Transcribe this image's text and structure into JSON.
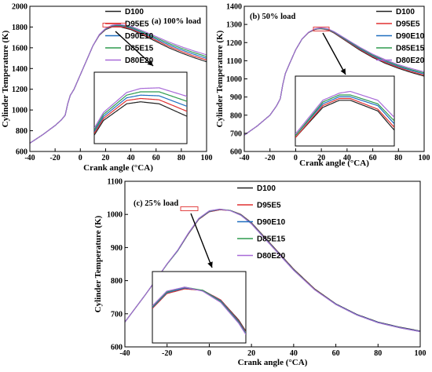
{
  "colors": {
    "D100": "#222222",
    "D95E5": "#e03030",
    "D90E10": "#1f6fc0",
    "D85E15": "#2e9b4e",
    "D80E20": "#a86ad8"
  },
  "chart_data": [
    {
      "type": "line",
      "title": "(a) 100% load",
      "xlabel": "Crank angle (°CA)",
      "ylabel": "Cylinder Temperature (K)",
      "xlim": [
        -40,
        100
      ],
      "ylim": [
        600,
        2000
      ],
      "xticks": [
        -40,
        -20,
        0,
        20,
        40,
        60,
        80,
        100
      ],
      "yticks": [
        600,
        800,
        1000,
        1200,
        1400,
        1600,
        1800,
        2000
      ],
      "x": [
        -40,
        -30,
        -20,
        -15,
        -12,
        -10,
        -8,
        -5,
        0,
        5,
        10,
        15,
        20,
        25,
        28,
        32,
        40,
        50,
        60,
        70,
        80,
        90,
        100
      ],
      "series": [
        {
          "name": "D100",
          "values": [
            680,
            760,
            850,
            905,
            950,
            1060,
            1140,
            1200,
            1340,
            1480,
            1620,
            1720,
            1775,
            1800,
            1803,
            1800,
            1775,
            1720,
            1660,
            1600,
            1550,
            1505,
            1465
          ]
        },
        {
          "name": "D95E5",
          "values": [
            680,
            760,
            850,
            905,
            950,
            1060,
            1140,
            1200,
            1340,
            1480,
            1620,
            1722,
            1778,
            1805,
            1808,
            1806,
            1783,
            1730,
            1672,
            1614,
            1565,
            1520,
            1482
          ]
        },
        {
          "name": "D90E10",
          "values": [
            680,
            760,
            850,
            905,
            950,
            1060,
            1140,
            1200,
            1340,
            1480,
            1620,
            1724,
            1781,
            1809,
            1813,
            1812,
            1791,
            1740,
            1684,
            1628,
            1580,
            1537,
            1498
          ]
        },
        {
          "name": "D85E15",
          "values": [
            680,
            760,
            850,
            905,
            950,
            1060,
            1140,
            1200,
            1340,
            1480,
            1620,
            1726,
            1784,
            1813,
            1818,
            1818,
            1799,
            1750,
            1696,
            1642,
            1595,
            1553,
            1515
          ]
        },
        {
          "name": "D80E20",
          "values": [
            680,
            760,
            850,
            905,
            950,
            1060,
            1140,
            1200,
            1340,
            1480,
            1620,
            1728,
            1787,
            1817,
            1823,
            1824,
            1807,
            1760,
            1708,
            1656,
            1610,
            1569,
            1532
          ]
        }
      ],
      "legend": "top-right"
    },
    {
      "type": "line",
      "title": "(b) 50% load",
      "xlabel": "Crank angle (°CA)",
      "ylabel": "Cylinder Temperature (K)",
      "xlim": [
        -40,
        100
      ],
      "ylim": [
        600,
        1400
      ],
      "xticks": [
        -40,
        -20,
        0,
        20,
        40,
        60,
        80,
        100
      ],
      "yticks": [
        600,
        700,
        800,
        900,
        1000,
        1100,
        1200,
        1300,
        1400
      ],
      "x": [
        -40,
        -30,
        -20,
        -15,
        -12,
        -10,
        -8,
        -5,
        0,
        5,
        10,
        15,
        18,
        20,
        25,
        30,
        40,
        50,
        60,
        70,
        80,
        90,
        100
      ],
      "series": [
        {
          "name": "D100",
          "values": [
            690,
            740,
            800,
            850,
            890,
            970,
            1030,
            1080,
            1160,
            1220,
            1255,
            1272,
            1276,
            1276,
            1270,
            1252,
            1205,
            1158,
            1118,
            1085,
            1058,
            1035,
            1015
          ]
        },
        {
          "name": "D95E5",
          "values": [
            690,
            740,
            800,
            850,
            890,
            970,
            1030,
            1080,
            1160,
            1220,
            1255,
            1273,
            1277,
            1277,
            1271,
            1254,
            1208,
            1162,
            1122,
            1090,
            1063,
            1040,
            1021
          ]
        },
        {
          "name": "D90E10",
          "values": [
            690,
            740,
            800,
            850,
            890,
            970,
            1030,
            1080,
            1160,
            1220,
            1256,
            1274,
            1278,
            1278,
            1273,
            1256,
            1211,
            1166,
            1127,
            1095,
            1068,
            1046,
            1027
          ]
        },
        {
          "name": "D85E15",
          "values": [
            690,
            740,
            800,
            850,
            890,
            970,
            1030,
            1080,
            1160,
            1220,
            1256,
            1275,
            1279,
            1279,
            1274,
            1258,
            1214,
            1170,
            1131,
            1100,
            1073,
            1051,
            1033
          ]
        },
        {
          "name": "D80E20",
          "values": [
            690,
            740,
            800,
            850,
            890,
            970,
            1030,
            1080,
            1160,
            1221,
            1257,
            1276,
            1280,
            1281,
            1276,
            1260,
            1217,
            1174,
            1136,
            1105,
            1078,
            1057,
            1039
          ]
        }
      ],
      "legend": "top-right"
    },
    {
      "type": "line",
      "title": "(c) 25% load",
      "xlabel": "Crank angle (°CA)",
      "ylabel": "Cylinder Temperature (K)",
      "xlim": [
        -40,
        100
      ],
      "ylim": [
        600,
        1100
      ],
      "xticks": [
        -40,
        -20,
        0,
        20,
        40,
        60,
        80,
        100
      ],
      "yticks": [
        600,
        700,
        800,
        900,
        1000,
        1100
      ],
      "x": [
        -40,
        -30,
        -20,
        -15,
        -10,
        -5,
        0,
        5,
        10,
        15,
        20,
        30,
        40,
        50,
        60,
        70,
        80,
        90,
        100
      ],
      "series": [
        {
          "name": "D100",
          "values": [
            675,
            760,
            850,
            890,
            940,
            985,
            1008,
            1014,
            1012,
            1000,
            975,
            905,
            835,
            775,
            730,
            698,
            675,
            660,
            648
          ]
        },
        {
          "name": "D95E5",
          "values": [
            675,
            760,
            850,
            890,
            940,
            985,
            1008,
            1014,
            1012,
            1000,
            974,
            904,
            834,
            774,
            729,
            697,
            674,
            659,
            647
          ]
        },
        {
          "name": "D90E10",
          "values": [
            675,
            760,
            850,
            890,
            941,
            986,
            1009,
            1015,
            1012,
            999,
            973,
            903,
            833,
            773,
            729,
            697,
            674,
            659,
            647
          ]
        },
        {
          "name": "D85E15",
          "values": [
            675,
            760,
            850,
            891,
            942,
            987,
            1010,
            1016,
            1012,
            998,
            972,
            902,
            832,
            773,
            728,
            696,
            673,
            658,
            646
          ]
        },
        {
          "name": "D80E20",
          "values": [
            675,
            760,
            851,
            892,
            943,
            988,
            1011,
            1016,
            1011,
            997,
            971,
            901,
            831,
            772,
            728,
            696,
            673,
            658,
            646
          ]
        }
      ],
      "legend": "top-right"
    }
  ]
}
